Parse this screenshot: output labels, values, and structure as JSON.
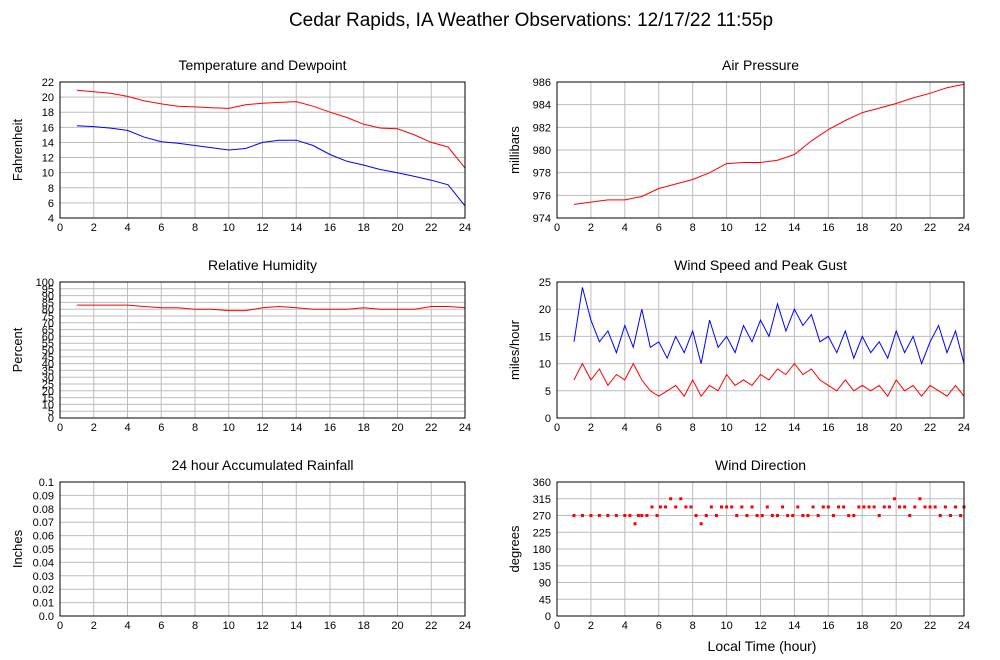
{
  "page": {
    "title": "Cedar Rapids, IA Weather Observations: 12/17/22 11:55p",
    "xlabel": "Local Time (hour)"
  },
  "chart_data": [
    {
      "id": "temp",
      "type": "line",
      "title": "Temperature and Dewpoint",
      "xlabel": "",
      "ylabel": "Fahrenheit",
      "xlim": [
        0,
        24
      ],
      "ylim": [
        4,
        22
      ],
      "xticks": [
        0,
        2,
        4,
        6,
        8,
        10,
        12,
        14,
        16,
        18,
        20,
        22,
        24
      ],
      "yticks": [
        4,
        6,
        8,
        10,
        12,
        14,
        16,
        18,
        20,
        22
      ],
      "grid": true,
      "series": [
        {
          "color": "#ff0000",
          "x": [
            1,
            2,
            3,
            4,
            5,
            6,
            7,
            8,
            9,
            10,
            11,
            12,
            13,
            14,
            15,
            16,
            17,
            18,
            19,
            20,
            21,
            22,
            23,
            24
          ],
          "y": [
            20.9,
            20.7,
            20.5,
            20.1,
            19.5,
            19.1,
            18.8,
            18.7,
            18.6,
            18.5,
            19.0,
            19.2,
            19.3,
            19.4,
            18.8,
            18.0,
            17.3,
            16.4,
            15.9,
            15.8,
            15.0,
            14.0,
            13.4,
            10.6
          ]
        },
        {
          "color": "#0000ff",
          "x": [
            1,
            2,
            3,
            4,
            5,
            6,
            7,
            8,
            9,
            10,
            11,
            12,
            13,
            14,
            15,
            16,
            17,
            18,
            19,
            20,
            21,
            22,
            23,
            24
          ],
          "y": [
            16.2,
            16.1,
            15.9,
            15.6,
            14.7,
            14.1,
            13.9,
            13.6,
            13.3,
            13.0,
            13.2,
            14.0,
            14.3,
            14.3,
            13.6,
            12.4,
            11.5,
            11.0,
            10.4,
            10.0,
            9.5,
            9.0,
            8.4,
            5.6
          ]
        }
      ]
    },
    {
      "id": "pressure",
      "type": "line",
      "title": "Air Pressure",
      "xlabel": "",
      "ylabel": "millibars",
      "xlim": [
        0,
        24
      ],
      "ylim": [
        974,
        986
      ],
      "xticks": [
        0,
        2,
        4,
        6,
        8,
        10,
        12,
        14,
        16,
        18,
        20,
        22,
        24
      ],
      "yticks": [
        974,
        976,
        978,
        980,
        982,
        984,
        986
      ],
      "grid": true,
      "series": [
        {
          "color": "#ff0000",
          "x": [
            1,
            2,
            3,
            4,
            5,
            6,
            7,
            8,
            9,
            10,
            11,
            12,
            13,
            14,
            15,
            16,
            17,
            18,
            19,
            20,
            21,
            22,
            23,
            24
          ],
          "y": [
            975.2,
            975.4,
            975.6,
            975.6,
            975.9,
            976.6,
            977.0,
            977.4,
            978.0,
            978.8,
            978.9,
            978.9,
            979.1,
            979.6,
            980.8,
            981.8,
            982.6,
            983.3,
            983.7,
            984.1,
            984.6,
            985.0,
            985.5,
            985.8
          ]
        }
      ]
    },
    {
      "id": "humidity",
      "type": "line",
      "title": "Relative Humidity",
      "xlabel": "",
      "ylabel": "Percent",
      "xlim": [
        0,
        24
      ],
      "ylim": [
        0,
        100
      ],
      "xticks": [
        0,
        2,
        4,
        6,
        8,
        10,
        12,
        14,
        16,
        18,
        20,
        22,
        24
      ],
      "yticks": [
        0,
        5,
        10,
        15,
        20,
        25,
        30,
        35,
        40,
        45,
        50,
        55,
        60,
        65,
        70,
        75,
        80,
        85,
        90,
        95,
        100
      ],
      "grid": true,
      "series": [
        {
          "color": "#ff0000",
          "x": [
            1,
            2,
            3,
            4,
            5,
            6,
            7,
            8,
            9,
            10,
            11,
            12,
            13,
            14,
            15,
            16,
            17,
            18,
            19,
            20,
            21,
            22,
            23,
            24
          ],
          "y": [
            83,
            83,
            83,
            83,
            82,
            81,
            81,
            80,
            80,
            79,
            79,
            81,
            82,
            81,
            80,
            80,
            80,
            81,
            80,
            80,
            80,
            82,
            82,
            81
          ]
        }
      ]
    },
    {
      "id": "wind",
      "type": "line",
      "title": "Wind Speed and Peak Gust",
      "xlabel": "",
      "ylabel": "miles/hour",
      "xlim": [
        0,
        24
      ],
      "ylim": [
        0,
        25
      ],
      "xticks": [
        0,
        2,
        4,
        6,
        8,
        10,
        12,
        14,
        16,
        18,
        20,
        22,
        24
      ],
      "yticks": [
        0,
        5,
        10,
        15,
        20,
        25
      ],
      "grid": true,
      "series": [
        {
          "color": "#0000ff",
          "x": [
            1,
            1.5,
            2,
            2.5,
            3,
            3.5,
            4,
            4.5,
            5,
            5.5,
            6,
            6.5,
            7,
            7.5,
            8,
            8.5,
            9,
            9.5,
            10,
            10.5,
            11,
            11.5,
            12,
            12.5,
            13,
            13.5,
            14,
            14.5,
            15,
            15.5,
            16,
            16.5,
            17,
            17.5,
            18,
            18.5,
            19,
            19.5,
            20,
            20.5,
            21,
            21.5,
            22,
            22.5,
            23,
            23.5,
            24
          ],
          "y": [
            14,
            24,
            18,
            14,
            16,
            12,
            17,
            13,
            20,
            13,
            14,
            11,
            15,
            12,
            16,
            10,
            18,
            13,
            15,
            12,
            17,
            14,
            18,
            15,
            21,
            16,
            20,
            17,
            19,
            14,
            15,
            12,
            16,
            11,
            15,
            12,
            14,
            11,
            16,
            12,
            15,
            10,
            14,
            17,
            12,
            16,
            10
          ]
        },
        {
          "color": "#ff0000",
          "x": [
            1,
            1.5,
            2,
            2.5,
            3,
            3.5,
            4,
            4.5,
            5,
            5.5,
            6,
            6.5,
            7,
            7.5,
            8,
            8.5,
            9,
            9.5,
            10,
            10.5,
            11,
            11.5,
            12,
            12.5,
            13,
            13.5,
            14,
            14.5,
            15,
            15.5,
            16,
            16.5,
            17,
            17.5,
            18,
            18.5,
            19,
            19.5,
            20,
            20.5,
            21,
            21.5,
            22,
            22.5,
            23,
            23.5,
            24
          ],
          "y": [
            7,
            10,
            7,
            9,
            6,
            8,
            7,
            10,
            7,
            5,
            4,
            5,
            6,
            4,
            7,
            4,
            6,
            5,
            8,
            6,
            7,
            6,
            8,
            7,
            9,
            8,
            10,
            8,
            9,
            7,
            6,
            5,
            7,
            5,
            6,
            5,
            6,
            4,
            7,
            5,
            6,
            4,
            6,
            5,
            4,
            6,
            4
          ]
        }
      ]
    },
    {
      "id": "rain",
      "type": "line",
      "title": "24 hour Accumulated Rainfall",
      "xlabel": "",
      "ylabel": "Inches",
      "xlim": [
        0,
        24
      ],
      "ylim": [
        0,
        0.1
      ],
      "xticks": [
        0,
        2,
        4,
        6,
        8,
        10,
        12,
        14,
        16,
        18,
        20,
        22,
        24
      ],
      "yticks": [
        0.0,
        0.01,
        0.02,
        0.03,
        0.04,
        0.05,
        0.06,
        0.07,
        0.08,
        0.09,
        0.1
      ],
      "ytick_labels": [
        "0.0",
        "0.01",
        "0.02",
        "0.03",
        "0.04",
        "0.05",
        "0.06",
        "0.07",
        "0.08",
        "0.09",
        "0.1"
      ],
      "grid": true,
      "series": [
        {
          "color": "#ff0000",
          "x": [
            0,
            24
          ],
          "y": [
            0,
            0
          ]
        }
      ]
    },
    {
      "id": "direction",
      "type": "scatter",
      "title": "Wind Direction",
      "xlabel": "",
      "ylabel": "degrees",
      "xlim": [
        0,
        24
      ],
      "ylim": [
        0,
        360
      ],
      "xticks": [
        0,
        2,
        4,
        6,
        8,
        10,
        12,
        14,
        16,
        18,
        20,
        22,
        24
      ],
      "yticks": [
        0,
        45,
        90,
        135,
        180,
        225,
        270,
        315,
        360
      ],
      "grid": true,
      "series": [
        {
          "color": "#ff0000",
          "x": [
            1,
            1.5,
            2,
            2.5,
            3,
            3.5,
            4,
            4.3,
            4.6,
            4.8,
            5,
            5.3,
            5.6,
            5.9,
            6.1,
            6.4,
            6.7,
            7,
            7.3,
            7.6,
            7.9,
            8.2,
            8.5,
            8.8,
            9.1,
            9.4,
            9.7,
            10,
            10.3,
            10.6,
            10.9,
            11.2,
            11.5,
            11.8,
            12.1,
            12.4,
            12.7,
            13,
            13.3,
            13.6,
            13.9,
            14.2,
            14.5,
            14.8,
            15.1,
            15.4,
            15.7,
            16,
            16.3,
            16.6,
            16.9,
            17.2,
            17.5,
            17.8,
            18.1,
            18.4,
            18.7,
            19,
            19.3,
            19.6,
            19.9,
            20.2,
            20.5,
            20.8,
            21.1,
            21.4,
            21.7,
            22,
            22.3,
            22.6,
            22.9,
            23.2,
            23.5,
            23.8,
            24
          ],
          "y": [
            270,
            270,
            270,
            270,
            270,
            270,
            270,
            270,
            248,
            270,
            270,
            270,
            293,
            270,
            293,
            293,
            315,
            293,
            315,
            293,
            293,
            270,
            248,
            270,
            293,
            270,
            293,
            293,
            293,
            270,
            293,
            270,
            293,
            270,
            270,
            293,
            270,
            270,
            293,
            270,
            270,
            293,
            270,
            270,
            293,
            270,
            293,
            293,
            270,
            293,
            293,
            270,
            270,
            293,
            293,
            293,
            293,
            270,
            293,
            293,
            315,
            293,
            293,
            270,
            293,
            315,
            293,
            293,
            293,
            270,
            293,
            270,
            293,
            270,
            293
          ]
        }
      ]
    }
  ]
}
